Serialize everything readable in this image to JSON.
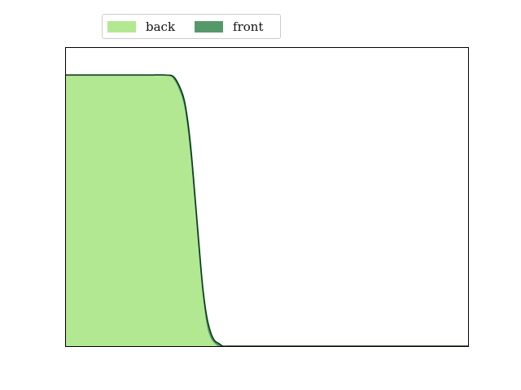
{
  "chart_data": {
    "type": "area",
    "title": "",
    "xlabel": "",
    "ylabel": "",
    "xlim": [
      0,
      1
    ],
    "ylim": [
      0,
      1.1
    ],
    "grid": false,
    "legend_position": "top-left",
    "series": [
      {
        "name": "back",
        "color": "#b2e892",
        "x": [
          0.0,
          0.1,
          0.2,
          0.25,
          0.27,
          0.29,
          0.3,
          0.31,
          0.32,
          0.33,
          0.34,
          0.35,
          0.36,
          0.37,
          0.38,
          0.4,
          0.45,
          1.0
        ],
        "y": [
          1.0,
          1.0,
          1.0,
          1.0,
          0.98,
          0.91,
          0.83,
          0.7,
          0.53,
          0.35,
          0.19,
          0.08,
          0.03,
          0.01,
          0.0,
          0.0,
          0.0,
          0.0
        ]
      },
      {
        "name": "front",
        "color": "#55996b",
        "x": [
          0.0,
          0.1,
          0.2,
          0.25,
          0.27,
          0.29,
          0.3,
          0.31,
          0.32,
          0.33,
          0.34,
          0.35,
          0.36,
          0.37,
          0.38,
          0.39,
          0.4,
          0.42,
          0.45,
          1.0
        ],
        "y": [
          1.0,
          1.0,
          1.0,
          1.0,
          0.99,
          0.93,
          0.86,
          0.74,
          0.57,
          0.39,
          0.22,
          0.11,
          0.05,
          0.02,
          0.01,
          0.0,
          0.0,
          0.0,
          0.0,
          0.0
        ]
      }
    ],
    "outline_color": "#0a3a1a"
  }
}
